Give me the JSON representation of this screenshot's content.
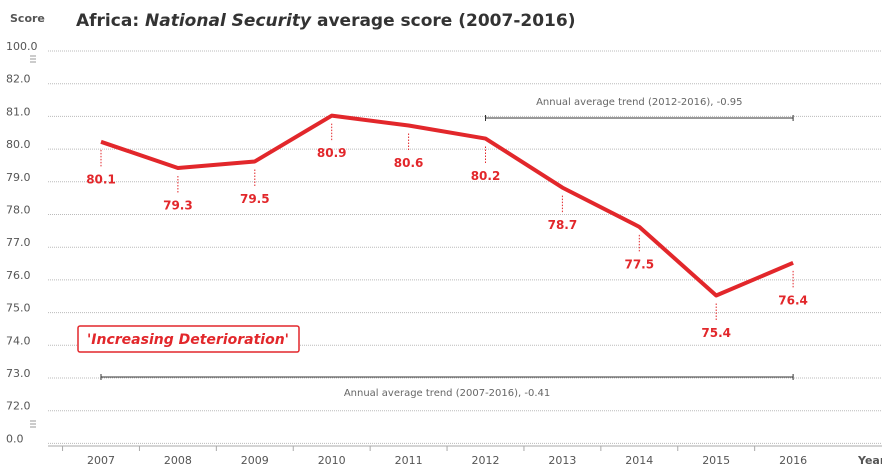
{
  "chart_data": {
    "type": "line",
    "title": "Africa: National Security average score (2007-2016)",
    "title_prefix": "Africa: ",
    "title_italic": "National Security",
    "title_suffix": " average score (2007-2016)",
    "y_label": "Score",
    "x_label": "Year",
    "categories": [
      "2007",
      "2008",
      "2009",
      "2010",
      "2011",
      "2012",
      "2013",
      "2014",
      "2015",
      "2016"
    ],
    "series": [
      {
        "name": "Africa",
        "color": "#e2272b",
        "values": [
          80.1,
          79.3,
          79.5,
          80.9,
          80.6,
          80.2,
          78.7,
          77.5,
          75.4,
          76.4
        ]
      }
    ],
    "ylim": [
      0,
      100
    ],
    "yticks": [
      {
        "value": 100,
        "label": "100.0"
      },
      {
        "value": 82,
        "label": "82.0"
      },
      {
        "value": 81,
        "label": "81.0"
      },
      {
        "value": 80,
        "label": "80.0"
      },
      {
        "value": 79,
        "label": "79.0"
      },
      {
        "value": 78,
        "label": "78.0"
      },
      {
        "value": 77,
        "label": "77.0"
      },
      {
        "value": 76,
        "label": "76.0"
      },
      {
        "value": 75,
        "label": "75.0"
      },
      {
        "value": 74,
        "label": "74.0"
      },
      {
        "value": 73,
        "label": "73.0"
      },
      {
        "value": 72,
        "label": "72.0"
      },
      {
        "value": 0,
        "label": "0.0"
      }
    ],
    "grid": true,
    "annotations": [
      "Annual average trend (2012-2016), -0.95",
      "Annual average trend (2007-2016), -0.41",
      "'Increasing Deterioration'"
    ]
  }
}
